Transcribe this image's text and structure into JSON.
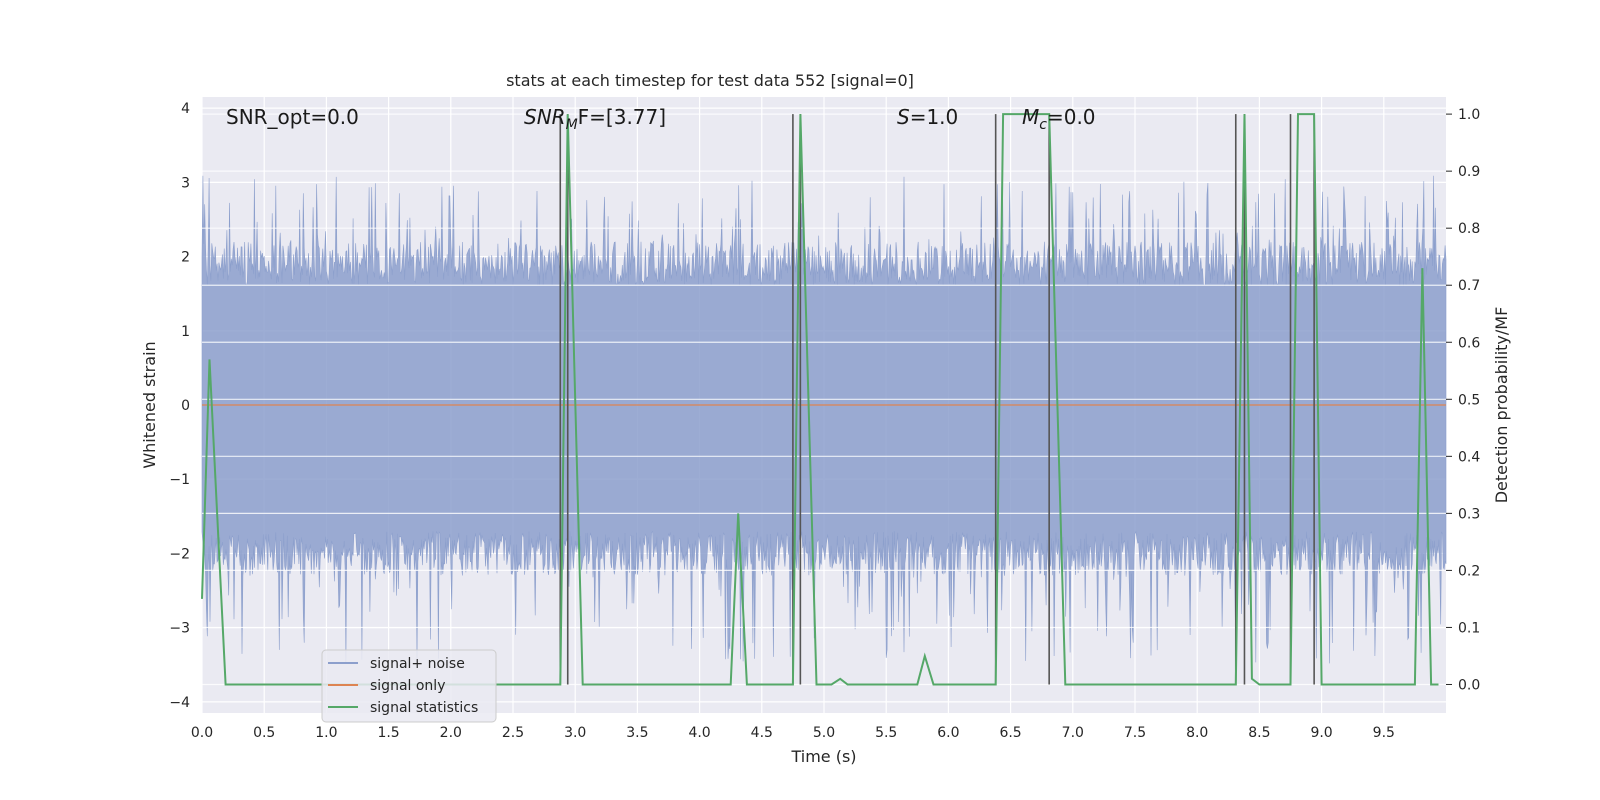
{
  "chart_data": {
    "type": "line",
    "title": "stats at each timestep for test data 552 [signal=0]",
    "xlabel": "Time (s)",
    "ylabel_left": "Whitened strain",
    "ylabel_right": "Detection probability/MF",
    "xlim": [
      0,
      10
    ],
    "ylim_left": [
      -4.15,
      4.15
    ],
    "ylim_right": [
      -0.05,
      1.03
    ],
    "x_ticks": [
      0.0,
      0.5,
      1.0,
      1.5,
      2.0,
      2.5,
      3.0,
      3.5,
      4.0,
      4.5,
      5.0,
      5.5,
      6.0,
      6.5,
      7.0,
      7.5,
      8.0,
      8.5,
      9.0,
      9.5
    ],
    "x_tick_labels": [
      "0.0",
      "0.5",
      "1.0",
      "1.5",
      "2.0",
      "2.5",
      "3.0",
      "3.5",
      "4.0",
      "4.5",
      "5.0",
      "5.5",
      "6.0",
      "6.5",
      "7.0",
      "7.5",
      "8.0",
      "8.5",
      "9.0",
      "9.5"
    ],
    "y_left_ticks": [
      4,
      3,
      2,
      1,
      0,
      -1,
      -2,
      -3,
      -4
    ],
    "y_left_tick_labels": [
      "4",
      "3",
      "2",
      "1",
      "0",
      "−1",
      "−2",
      "−3",
      "−4"
    ],
    "y_right_ticks": [
      1.0,
      0.9,
      0.8,
      0.7,
      0.6,
      0.5,
      0.4,
      0.3,
      0.2,
      0.1,
      0.0
    ],
    "y_right_tick_labels": [
      "1.0",
      "0.9",
      "0.8",
      "0.7",
      "0.6",
      "0.5",
      "0.4",
      "0.3",
      "0.2",
      "0.1",
      "0.0"
    ],
    "annotations": {
      "snr_opt": "SNR_opt=0.0",
      "snr_mf_base": "SNR",
      "snr_mf_sub": "M",
      "snr_mf_rest": "F=[3.77]",
      "s_sym": "S",
      "s_rest": "=1.0",
      "mc_sym": "M",
      "mc_sub": "c",
      "mc_rest": "=0.0"
    },
    "noise_series": {
      "name": "signal+ noise",
      "amplitude_band": [
        -1.7,
        1.6
      ],
      "peak_range": [
        -3.5,
        3.1
      ]
    },
    "signal_series": {
      "name": "signal only",
      "value": 0.0
    },
    "statistics_series": {
      "name": "signal statistics",
      "axis": "right",
      "points": [
        [
          0.0,
          0.15
        ],
        [
          0.06,
          0.57
        ],
        [
          0.19,
          0.0
        ],
        [
          2.88,
          0.0
        ],
        [
          2.94,
          1.0
        ],
        [
          3.06,
          0.0
        ],
        [
          4.25,
          0.0
        ],
        [
          4.31,
          0.3
        ],
        [
          4.38,
          0.0
        ],
        [
          4.75,
          0.0
        ],
        [
          4.81,
          1.0
        ],
        [
          4.94,
          0.0
        ],
        [
          5.06,
          0.0
        ],
        [
          5.13,
          0.01
        ],
        [
          5.19,
          0.0
        ],
        [
          5.75,
          0.0
        ],
        [
          5.81,
          0.05
        ],
        [
          5.88,
          0.0
        ],
        [
          6.38,
          0.0
        ],
        [
          6.44,
          1.0
        ],
        [
          6.81,
          1.0
        ],
        [
          6.94,
          0.0
        ],
        [
          8.31,
          0.0
        ],
        [
          8.38,
          1.0
        ],
        [
          8.44,
          0.01
        ],
        [
          8.5,
          0.0
        ],
        [
          8.75,
          0.0
        ],
        [
          8.81,
          1.0
        ],
        [
          8.94,
          1.0
        ],
        [
          9.0,
          0.0
        ],
        [
          9.75,
          0.0
        ],
        [
          9.81,
          0.73
        ],
        [
          9.88,
          0.0
        ],
        [
          9.94,
          0.0
        ]
      ]
    },
    "vertical_lines": [
      2.88,
      2.94,
      4.75,
      4.81,
      6.38,
      6.81,
      8.31,
      8.38,
      8.75,
      8.94
    ],
    "legend": {
      "placement": "lower-left",
      "entries": [
        {
          "label": "signal+ noise",
          "color": "#8c9fcc"
        },
        {
          "label": "signal only",
          "color": "#dd8452"
        },
        {
          "label": "signal statistics",
          "color": "#55a868"
        }
      ]
    },
    "colors": {
      "background": "#eaeaf2",
      "grid": "#ffffff",
      "noise": "#8c9fcc",
      "signal": "#dd8452",
      "statistics": "#55a868",
      "vline": "#555555"
    }
  }
}
